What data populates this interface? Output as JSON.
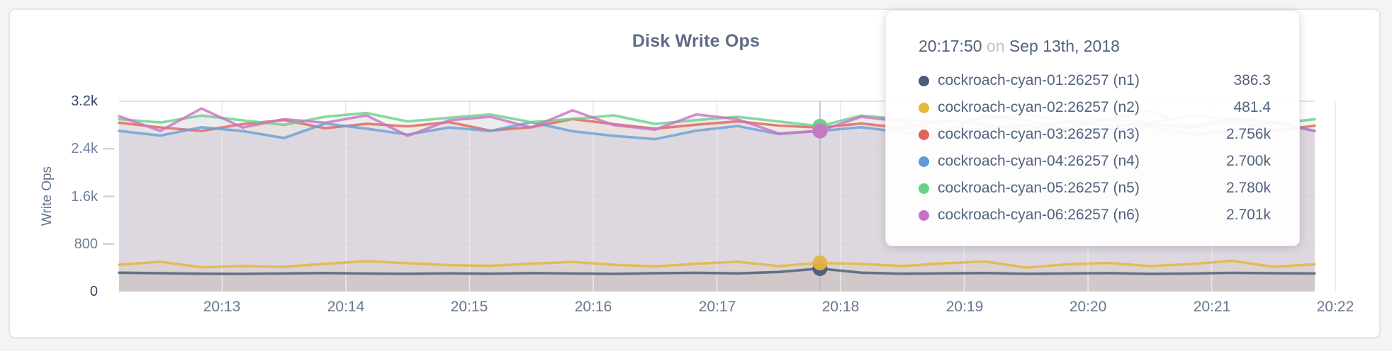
{
  "chart": {
    "title": "Disk Write Ops",
    "y_axis": {
      "label": "Write Ops"
    },
    "x_axis": {
      "label": ""
    }
  },
  "chart_data": {
    "type": "line",
    "title": "Disk Write Ops",
    "xlabel": "",
    "ylabel": "Write Ops",
    "ylim": [
      0,
      3200
    ],
    "grid": true,
    "legend_position": "tooltip-only",
    "x_start_time": "20:12:10",
    "x_end_time": "20:21:50",
    "x_interval_seconds": 20,
    "x_ticks": [
      {
        "label": "20:13",
        "seconds_from_start": 50
      },
      {
        "label": "20:14",
        "seconds_from_start": 110
      },
      {
        "label": "20:15",
        "seconds_from_start": 170
      },
      {
        "label": "20:16",
        "seconds_from_start": 230
      },
      {
        "label": "20:17",
        "seconds_from_start": 290
      },
      {
        "label": "20:18",
        "seconds_from_start": 350
      },
      {
        "label": "20:19",
        "seconds_from_start": 410
      },
      {
        "label": "20:20",
        "seconds_from_start": 470
      },
      {
        "label": "20:21",
        "seconds_from_start": 530
      },
      {
        "label": "20:22",
        "seconds_from_start": 590
      }
    ],
    "y_ticks": [
      {
        "label": "3.2k",
        "value": 3200,
        "emphasis": true
      },
      {
        "label": "2.4k",
        "value": 2400,
        "emphasis": false
      },
      {
        "label": "1.6k",
        "value": 1600,
        "emphasis": false
      },
      {
        "label": "800",
        "value": 800,
        "emphasis": false
      },
      {
        "label": "0",
        "value": 0,
        "emphasis": true
      }
    ],
    "hover": {
      "index": 17,
      "time": "20:17:50"
    },
    "series": [
      {
        "name": "cockroach-cyan-01:26257 (n1)",
        "color": "#4c5b78",
        "values": [
          318,
          308,
          300,
          296,
          305,
          312,
          302,
          298,
          306,
          300,
          310,
          304,
          296,
          308,
          315,
          306,
          330,
          386.3,
          318,
          300,
          306,
          312,
          298,
          305,
          310,
          296,
          302,
          315,
          308,
          304
        ]
      },
      {
        "name": "cockroach-cyan-02:26257 (n2)",
        "color": "#e4b440",
        "values": [
          452,
          502,
          408,
          430,
          415,
          468,
          512,
          478,
          445,
          432,
          470,
          498,
          450,
          422,
          468,
          502,
          428,
          481.4,
          465,
          430,
          475,
          505,
          402,
          458,
          482,
          428,
          462,
          518,
          415,
          460
        ]
      },
      {
        "name": "cockroach-cyan-03:26257 (n3)",
        "color": "#dd685e",
        "values": [
          2840,
          2760,
          2700,
          2816,
          2884,
          2745,
          2820,
          2776,
          2850,
          2705,
          2764,
          2900,
          2815,
          2738,
          2805,
          2862,
          2790,
          2756,
          2825,
          2748,
          2884,
          2800,
          2736,
          2858,
          2788,
          2822,
          2756,
          2880,
          2702,
          2788
        ]
      },
      {
        "name": "cockroach-cyan-04:26257 (n4)",
        "color": "#69a1d8",
        "values": [
          2702,
          2622,
          2762,
          2698,
          2582,
          2825,
          2738,
          2640,
          2758,
          2700,
          2848,
          2695,
          2618,
          2562,
          2704,
          2782,
          2648,
          2700,
          2762,
          2678,
          2598,
          2742,
          2802,
          2658,
          2722,
          2778,
          2638,
          2702,
          2858,
          2700
        ]
      },
      {
        "name": "cockroach-cyan-05:26257 (n5)",
        "color": "#6fd08c",
        "values": [
          2898,
          2842,
          2958,
          2878,
          2802,
          2940,
          3002,
          2860,
          2922,
          2978,
          2848,
          2902,
          2962,
          2818,
          2882,
          2938,
          2858,
          2780,
          2958,
          2898,
          2842,
          2922,
          2978,
          2862,
          2898,
          2840,
          2958,
          2902,
          2818,
          2898
        ]
      },
      {
        "name": "cockroach-cyan-06:26257 (n6)",
        "color": "#cb74c5",
        "values": [
          2948,
          2702,
          3078,
          2758,
          2898,
          2838,
          2962,
          2618,
          2878,
          2940,
          2758,
          3048,
          2798,
          2722,
          2978,
          2898,
          2658,
          2701,
          2938,
          2858,
          2698,
          2958,
          2878,
          2738,
          2898,
          3042,
          2778,
          2918,
          2848,
          2698
        ]
      }
    ]
  },
  "tooltip": {
    "time": "20:17:50",
    "on_word": "on",
    "date": "Sep 13th, 2018",
    "rows": [
      {
        "name": "cockroach-cyan-01:26257 (n1)",
        "value": "386.3",
        "color": "#4c5b78"
      },
      {
        "name": "cockroach-cyan-02:26257 (n2)",
        "value": "481.4",
        "color": "#e8b83b"
      },
      {
        "name": "cockroach-cyan-03:26257 (n3)",
        "value": "2.756k",
        "color": "#e0635a"
      },
      {
        "name": "cockroach-cyan-04:26257 (n4)",
        "value": "2.700k",
        "color": "#5d9bd5"
      },
      {
        "name": "cockroach-cyan-05:26257 (n5)",
        "value": "2.780k",
        "color": "#66d283"
      },
      {
        "name": "cockroach-cyan-06:26257 (n6)",
        "value": "2.701k",
        "color": "#ca70c8"
      }
    ]
  },
  "colors": {
    "page_background": "#f4f4f5",
    "card_background": "#ffffff",
    "card_border": "#e4e4e6",
    "title_text": "#5f6c87",
    "tick_text": "#71809b",
    "tick_text_emphasis": "#37476a",
    "grid_horizontal": "#d3d3d7",
    "grid_vertical": "#e9e9ec",
    "crosshair": "#b8b8bc",
    "tooltip_text": "#53627e",
    "tooltip_muted": "#c5c5c5"
  }
}
